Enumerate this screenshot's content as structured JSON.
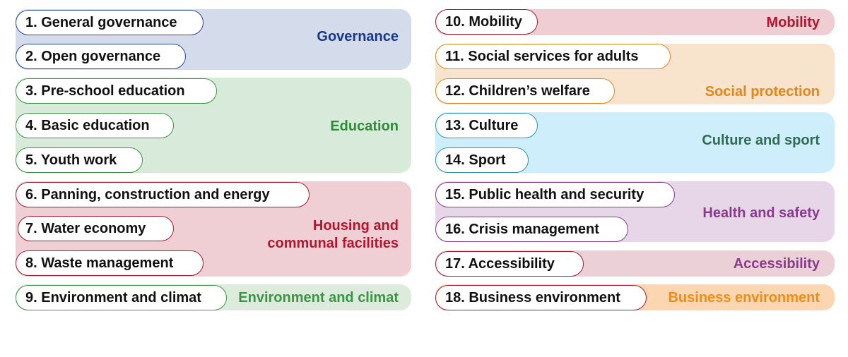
{
  "colors": {
    "governance": {
      "bg": "#d4dcec",
      "text": "#17398c",
      "border": "#2a4a96"
    },
    "education": {
      "bg": "#d8ebda",
      "text": "#2e8b3a",
      "border": "#3a9444"
    },
    "housing": {
      "bg": "#efcfd4",
      "text": "#b3152f",
      "border": "#a51c30"
    },
    "environment": {
      "bg": "#dcebdc",
      "text": "#3b9444",
      "border": "#3a9444"
    },
    "mobility": {
      "bg": "#efcdd2",
      "text": "#b3152f",
      "border": "#a51c30"
    },
    "social": {
      "bg": "#f8e3cc",
      "text": "#e3861a",
      "border": "#e3861a"
    },
    "culture": {
      "bg": "#cdeefa",
      "text": "#2f6b55",
      "border": "#2a93b6"
    },
    "health": {
      "bg": "#e6d6e8",
      "text": "#8a3b8c",
      "border": "#8a3b8c"
    },
    "accessibility": {
      "bg": "#ecd0d8",
      "text": "#8a3b8c",
      "border": "#a51c30"
    },
    "business": {
      "bg": "#fbd6b0",
      "text": "#ef8c16",
      "border": "#a51c30"
    }
  },
  "groups": {
    "governance": {
      "label": "Governance"
    },
    "education": {
      "label": "Education"
    },
    "housing": {
      "label_line1": "Housing and",
      "label_line2": "communal facilities"
    },
    "environment": {
      "label": "Environment and climat"
    },
    "mobility": {
      "label": "Mobility"
    },
    "social": {
      "label": "Social protection"
    },
    "culture": {
      "label": "Culture and sport"
    },
    "health": {
      "label": "Health and safety"
    },
    "accessibility": {
      "label": "Accessibility"
    },
    "business": {
      "label": "Business environment"
    }
  },
  "items": {
    "i1": "1. General governance",
    "i2": "2. Open governance",
    "i3": "3. Pre-school education",
    "i4": "4. Basic education",
    "i5": "5. Youth work",
    "i6": "6. Panning, construction and energy",
    "i7": "7. Water economy",
    "i8": "8. Waste management",
    "i9": "9. Environment and climat",
    "i10": "10. Mobility",
    "i11": "11. Social services for adults",
    "i12": "12. Children’s welfare",
    "i13": "13. Culture",
    "i14": "14. Sport",
    "i15": "15. Public health and security",
    "i16": "16. Crisis management",
    "i17": "17. Accessibility",
    "i18": "18. Business environment"
  }
}
